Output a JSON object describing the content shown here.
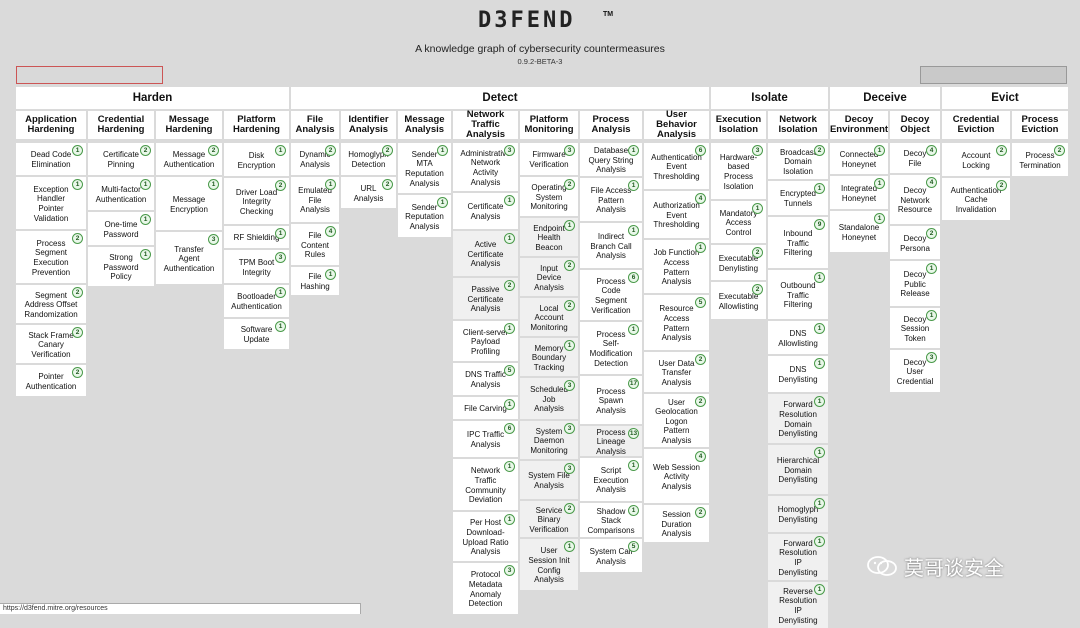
{
  "header": {
    "logo": "D3FEND",
    "trademark": "TM",
    "tagline": "A knowledge graph of cybersecurity countermeasures",
    "version": "0.9.2-BETA-3"
  },
  "tactics": [
    "Harden",
    "Detect",
    "Isolate",
    "Deceive",
    "Evict"
  ],
  "columns": [
    {
      "title": "Application Hardening",
      "items": [
        {
          "label": "Dead Code Elimination",
          "count": "1"
        },
        {
          "label": "Exception Handler Pointer Validation",
          "count": "1"
        },
        {
          "label": "Process Segment Execution Prevention",
          "count": "2"
        },
        {
          "label": "Segment Address Offset Randomization",
          "count": "2"
        },
        {
          "label": "Stack Frame Canary Verification",
          "count": "2"
        },
        {
          "label": "Pointer Authentication",
          "count": "2"
        }
      ]
    },
    {
      "title": "Credential Hardening",
      "items": [
        {
          "label": "Certificate Pinning",
          "count": "2"
        },
        {
          "label": "Multi-factor Authentication",
          "count": "1"
        },
        {
          "label": "One-time Password",
          "count": "1"
        },
        {
          "label": "Strong Password Policy",
          "count": "1"
        }
      ]
    },
    {
      "title": "Message Hardening",
      "items": [
        {
          "label": "Message Authentication",
          "count": "2"
        },
        {
          "label": "Message Encryption",
          "count": "1"
        },
        {
          "label": "Transfer Agent Authentication",
          "count": "3"
        }
      ]
    },
    {
      "title": "Platform Hardening",
      "items": [
        {
          "label": "Disk Encryption",
          "count": "1"
        },
        {
          "label": "Driver Load Integrity Checking",
          "count": "2"
        },
        {
          "label": "RF Shielding",
          "count": "1"
        },
        {
          "label": "TPM Boot Integrity",
          "count": "3"
        },
        {
          "label": "Bootloader Authentication",
          "count": "1"
        },
        {
          "label": "Software Update",
          "count": "1"
        }
      ]
    },
    {
      "title": "File Analysis",
      "items": [
        {
          "label": "Dynamic Analysis",
          "count": "2"
        },
        {
          "label": "Emulated File Analysis",
          "count": "1"
        },
        {
          "label": "File Content Rules",
          "count": "4"
        },
        {
          "label": "File Hashing",
          "count": "1"
        }
      ]
    },
    {
      "title": "Identifier Analysis",
      "items": [
        {
          "label": "Homoglyph Detection",
          "count": "2"
        },
        {
          "label": "URL Analysis",
          "count": "2"
        }
      ]
    },
    {
      "title": "Message Analysis",
      "items": [
        {
          "label": "Sender MTA Reputation Analysis",
          "count": "1"
        },
        {
          "label": "Sender Reputation Analysis",
          "count": "1"
        }
      ]
    },
    {
      "title": "Network Traffic Analysis",
      "items": [
        {
          "label": "Administrative Network Activity Analysis",
          "count": "3"
        },
        {
          "label": "Certificate Analysis",
          "count": "1"
        },
        {
          "label": "Active Certificate Analysis",
          "count": "1",
          "grey": true
        },
        {
          "label": "Passive Certificate Analysis",
          "count": "2",
          "grey": true
        },
        {
          "label": "Client-server Payload Profiling",
          "count": "1"
        },
        {
          "label": "DNS Traffic Analysis",
          "count": "5"
        },
        {
          "label": "File Carving",
          "count": "1"
        },
        {
          "label": "IPC Traffic Analysis",
          "count": "6"
        },
        {
          "label": "Network Traffic Community Deviation",
          "count": "1"
        },
        {
          "label": "Per Host Download-Upload Ratio Analysis",
          "count": "1"
        },
        {
          "label": "Protocol Metadata Anomaly Detection",
          "count": "3"
        }
      ]
    },
    {
      "title": "Platform Monitoring",
      "items": [
        {
          "label": "Firmware Verification",
          "count": "3"
        },
        {
          "label": "Operating System Monitoring",
          "count": "2"
        },
        {
          "label": "Endpoint Health Beacon",
          "count": "1",
          "grey": true
        },
        {
          "label": "Input Device Analysis",
          "count": "2",
          "grey": true
        },
        {
          "label": "Local Account Monitoring",
          "count": "2",
          "grey": true
        },
        {
          "label": "Memory Boundary Tracking",
          "count": "1",
          "grey": true
        },
        {
          "label": "Scheduled Job Analysis",
          "count": "3",
          "grey": true
        },
        {
          "label": "System Daemon Monitoring",
          "count": "3",
          "grey": true
        },
        {
          "label": "System File Analysis",
          "count": "3",
          "grey": true
        },
        {
          "label": "Service Binary Verification",
          "count": "2",
          "grey": true
        },
        {
          "label": "User Session Init Config Analysis",
          "count": "1",
          "grey": true
        }
      ]
    },
    {
      "title": "Process Analysis",
      "items": [
        {
          "label": "Database Query String Analysis",
          "count": "1"
        },
        {
          "label": "File Access Pattern Analysis",
          "count": "1"
        },
        {
          "label": "Indirect Branch Call Analysis",
          "count": "1"
        },
        {
          "label": "Process Code Segment Verification",
          "count": "6"
        },
        {
          "label": "Process Self-Modification Detection",
          "count": "1"
        },
        {
          "label": "Process Spawn Analysis",
          "count": "17"
        },
        {
          "label": "Process Lineage Analysis",
          "count": "13",
          "grey": true
        },
        {
          "label": "Script Execution Analysis",
          "count": "1"
        },
        {
          "label": "Shadow Stack Comparisons",
          "count": "1"
        },
        {
          "label": "System Call Analysis",
          "count": "5"
        }
      ]
    },
    {
      "title": "User Behavior Analysis",
      "items": [
        {
          "label": "Authentication Event Thresholding",
          "count": "6"
        },
        {
          "label": "Authorization Event Thresholding",
          "count": "4"
        },
        {
          "label": "Job Function Access Pattern Analysis",
          "count": "1"
        },
        {
          "label": "Resource Access Pattern Analysis",
          "count": "5"
        },
        {
          "label": "User Data Transfer Analysis",
          "count": "2"
        },
        {
          "label": "User Geolocation Logon Pattern Analysis",
          "count": "2"
        },
        {
          "label": "Web Session Activity Analysis",
          "count": "4"
        },
        {
          "label": "Session Duration Analysis",
          "count": "2"
        }
      ]
    },
    {
      "title": "Execution Isolation",
      "items": [
        {
          "label": "Hardware-based Process Isolation",
          "count": "3"
        },
        {
          "label": "Mandatory Access Control",
          "count": "1"
        },
        {
          "label": "Executable Denylisting",
          "count": "2"
        },
        {
          "label": "Executable Allowlisting",
          "count": "2"
        }
      ]
    },
    {
      "title": "Network Isolation",
      "items": [
        {
          "label": "Broadcast Domain Isolation",
          "count": "2"
        },
        {
          "label": "Encrypted Tunnels",
          "count": "1"
        },
        {
          "label": "Inbound Traffic Filtering",
          "count": "9"
        },
        {
          "label": "Outbound Traffic Filtering",
          "count": "1"
        },
        {
          "label": "DNS Allowlisting",
          "count": "1"
        },
        {
          "label": "DNS Denylisting",
          "count": "1"
        },
        {
          "label": "Forward Resolution Domain Denylisting",
          "count": "1",
          "grey": true
        },
        {
          "label": "Hierarchical Domain Denylisting",
          "count": "1",
          "grey": true
        },
        {
          "label": "Homoglyph Denylisting",
          "count": "1",
          "grey": true
        },
        {
          "label": "Forward Resolution IP Denylisting",
          "count": "1",
          "grey": true
        },
        {
          "label": "Reverse Resolution IP Denylisting",
          "count": "1",
          "grey": true
        }
      ]
    },
    {
      "title": "Decoy Environment",
      "items": [
        {
          "label": "Connected Honeynet",
          "count": "1"
        },
        {
          "label": "Integrated Honeynet",
          "count": "1"
        },
        {
          "label": "Standalone Honeynet",
          "count": "1"
        }
      ]
    },
    {
      "title": "Decoy Object",
      "items": [
        {
          "label": "Decoy File",
          "count": "4"
        },
        {
          "label": "Decoy Network Resource",
          "count": "4"
        },
        {
          "label": "Decoy Persona",
          "count": "2"
        },
        {
          "label": "Decoy Public Release",
          "count": "1"
        },
        {
          "label": "Decoy Session Token",
          "count": "1"
        },
        {
          "label": "Decoy User Credential",
          "count": "3"
        }
      ]
    },
    {
      "title": "Credential Eviction",
      "items": [
        {
          "label": "Account Locking",
          "count": "2"
        },
        {
          "label": "Authentication Cache Invalidation",
          "count": "2"
        }
      ]
    },
    {
      "title": "Process Eviction",
      "items": [
        {
          "label": "Process Termination",
          "count": "2"
        }
      ]
    }
  ],
  "status_url": "https://d3fend.mitre.org/resources",
  "watermark": "莫哥谈安全",
  "icons": {
    "badge": "count-badge",
    "watermark": "wechat-icon"
  }
}
